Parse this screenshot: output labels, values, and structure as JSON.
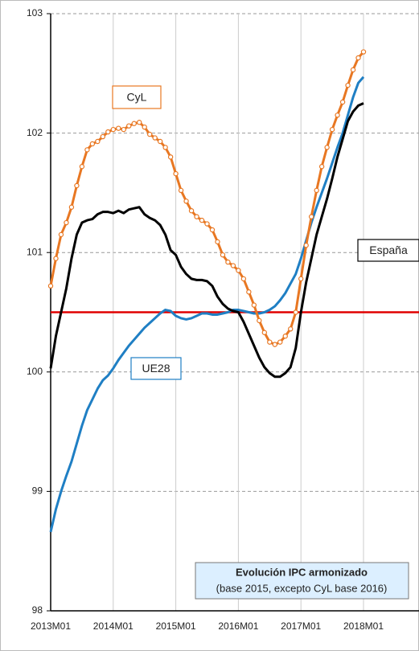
{
  "chart_data": {
    "type": "line",
    "title": "Evolución IPC armonizado",
    "subtitle": "(base 2015, excepto CyL base 2016)",
    "categories": [
      "2013M01",
      null,
      null,
      null,
      null,
      null,
      null,
      null,
      null,
      null,
      null,
      null,
      "2014M01",
      null,
      null,
      null,
      null,
      null,
      null,
      null,
      null,
      null,
      null,
      null,
      "2015M01",
      null,
      null,
      null,
      null,
      null,
      null,
      null,
      null,
      null,
      null,
      null,
      "2016M01",
      null,
      null,
      null,
      null,
      null,
      null,
      null,
      null,
      null,
      null,
      null,
      "2017M01",
      null,
      null,
      null,
      null,
      null,
      null,
      null,
      null,
      null,
      null,
      null,
      "2018M01"
    ],
    "series": [
      {
        "name": "CyL",
        "color": "#e87722",
        "markers": true,
        "values": [
          100.72,
          100.95,
          101.15,
          101.25,
          101.38,
          101.56,
          101.72,
          101.86,
          101.91,
          101.93,
          101.97,
          102.01,
          102.03,
          102.04,
          102.03,
          102.06,
          102.08,
          102.09,
          102.05,
          101.99,
          101.96,
          101.93,
          101.88,
          101.8,
          101.66,
          101.52,
          101.43,
          101.35,
          101.3,
          101.27,
          101.24,
          101.19,
          101.09,
          100.98,
          100.92,
          100.89,
          100.85,
          100.78,
          100.67,
          100.56,
          100.43,
          100.33,
          100.25,
          100.23,
          100.25,
          100.3,
          100.36,
          100.5,
          100.78,
          101.06,
          101.3,
          101.52,
          101.72,
          101.88,
          102.03,
          102.15,
          102.26,
          102.4,
          102.53,
          102.63,
          102.68
        ]
      },
      {
        "name": "España",
        "color": "#000000",
        "markers": false,
        "values": [
          100.03,
          100.3,
          100.5,
          100.7,
          100.95,
          101.15,
          101.25,
          101.27,
          101.28,
          101.32,
          101.34,
          101.34,
          101.33,
          101.35,
          101.33,
          101.36,
          101.37,
          101.38,
          101.32,
          101.29,
          101.27,
          101.23,
          101.15,
          101.02,
          100.98,
          100.88,
          100.82,
          100.78,
          100.77,
          100.77,
          100.76,
          100.72,
          100.63,
          100.57,
          100.53,
          100.51,
          100.5,
          100.42,
          100.32,
          100.22,
          100.12,
          100.04,
          99.99,
          99.96,
          99.96,
          99.99,
          100.04,
          100.2,
          100.5,
          100.75,
          100.95,
          101.15,
          101.3,
          101.45,
          101.62,
          101.8,
          101.95,
          102.1,
          102.18,
          102.23,
          102.25
        ]
      },
      {
        "name": "UE28",
        "color": "#1f7fc4",
        "markers": false,
        "values": [
          98.66,
          98.85,
          99.0,
          99.13,
          99.25,
          99.4,
          99.55,
          99.68,
          99.77,
          99.86,
          99.93,
          99.97,
          100.03,
          100.1,
          100.16,
          100.22,
          100.27,
          100.32,
          100.37,
          100.41,
          100.45,
          100.49,
          100.52,
          100.51,
          100.47,
          100.45,
          100.44,
          100.45,
          100.47,
          100.49,
          100.49,
          100.48,
          100.48,
          100.49,
          100.5,
          100.52,
          100.52,
          100.51,
          100.5,
          100.49,
          100.49,
          100.5,
          100.52,
          100.55,
          100.6,
          100.66,
          100.74,
          100.82,
          100.95,
          101.1,
          101.25,
          101.38,
          101.5,
          101.62,
          101.75,
          101.88,
          102.0,
          102.15,
          102.3,
          102.42,
          102.47
        ]
      }
    ],
    "reference_line": {
      "value": 100.5,
      "color": "#e00000"
    },
    "ylim": [
      98,
      103
    ],
    "yticks": [
      98,
      99,
      100,
      101,
      102,
      103
    ],
    "grid": true
  }
}
